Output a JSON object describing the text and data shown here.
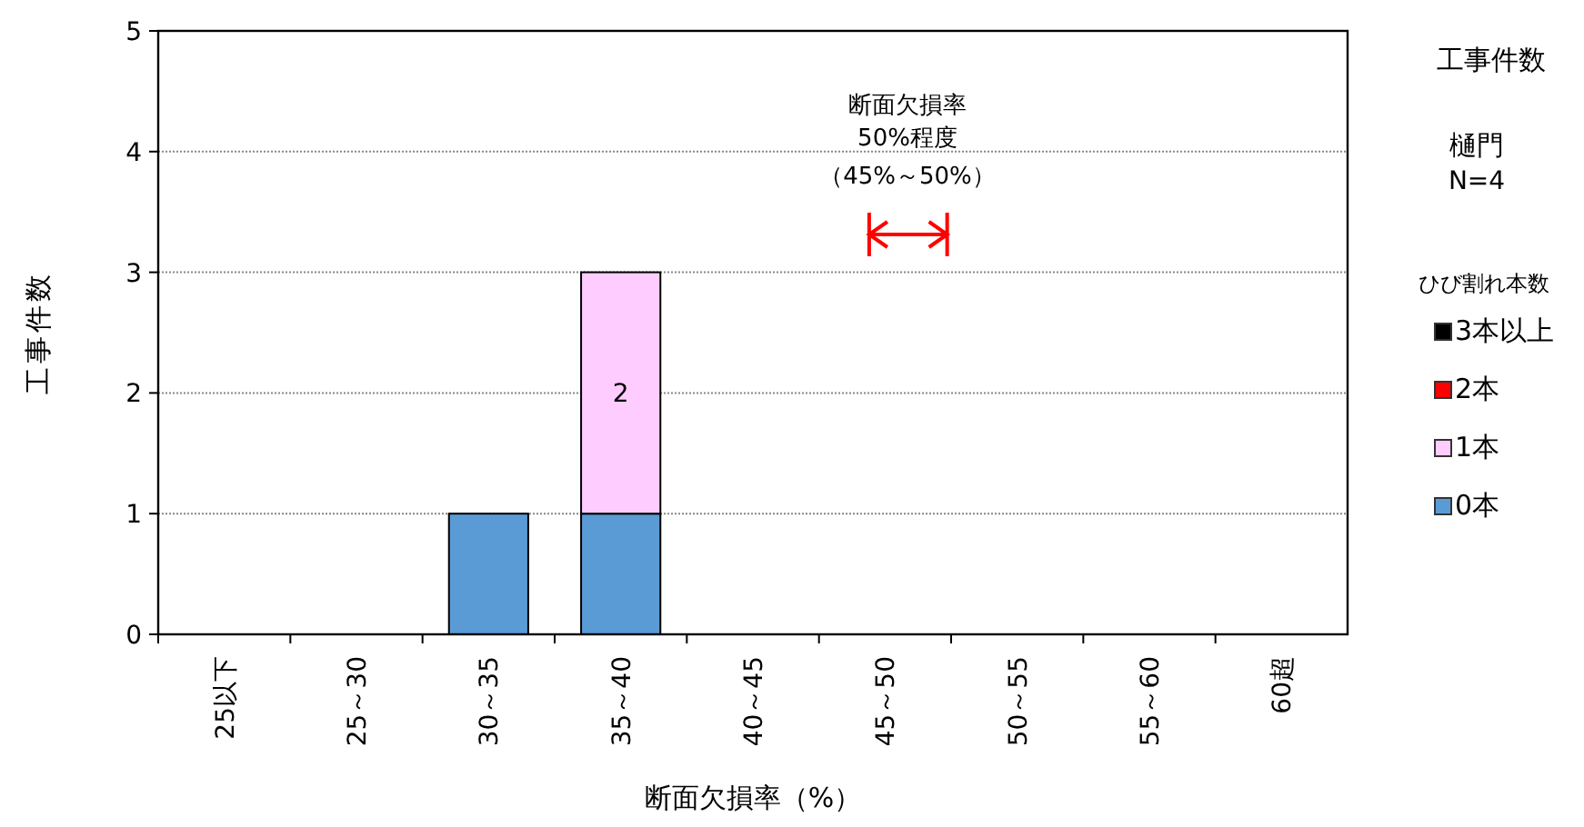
{
  "chart_data": {
    "type": "bar",
    "stacked": true,
    "xlabel": "断面欠損率（%）",
    "ylabel": "工事件数",
    "legend_title": "ひび割れ本数",
    "legend": "right",
    "grid": "y",
    "ylim": [
      0,
      5
    ],
    "yticks": [
      0,
      1,
      2,
      3,
      4,
      5
    ],
    "categories": [
      "25以下",
      "25～30",
      "30～35",
      "35～40",
      "40～45",
      "45～50",
      "50～55",
      "55～60",
      "60超"
    ],
    "series": [
      {
        "name": "0本",
        "color": "#5b9bd5",
        "values": [
          0,
          0,
          1,
          1,
          0,
          0,
          0,
          0,
          0
        ]
      },
      {
        "name": "1本",
        "color": "#ffccff",
        "values": [
          0,
          0,
          0,
          2,
          0,
          0,
          0,
          0,
          0
        ],
        "value_labels": [
          null,
          null,
          null,
          "2",
          null,
          null,
          null,
          null,
          null
        ]
      },
      {
        "name": "2本",
        "color": "#ff0000",
        "values": [
          0,
          0,
          0,
          0,
          0,
          0,
          0,
          0,
          0
        ]
      },
      {
        "name": "3本以上",
        "color": "#000000",
        "values": [
          0,
          0,
          0,
          0,
          0,
          0,
          0,
          0,
          0
        ]
      }
    ],
    "annotations": [
      "断面欠損率",
      "50%程度",
      "（45%～50%）",
      "工事件数",
      "樋門",
      "N=4"
    ]
  }
}
